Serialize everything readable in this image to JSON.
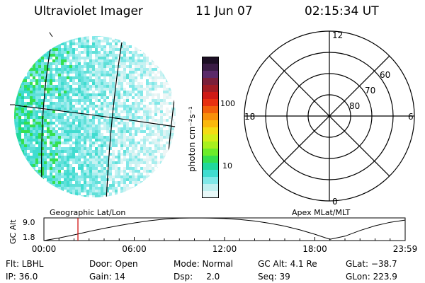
{
  "header": {
    "title": "Ultraviolet Imager",
    "date": "11 Jun 07",
    "time": "02:15:34 UT"
  },
  "imager": {
    "projection_label": "Geographic Lat/Lon"
  },
  "colorbar": {
    "unit_label": "photon cm⁻²s⁻¹",
    "ticks": [
      "100",
      "10"
    ],
    "colors": [
      "#1c0f24",
      "#3a1c45",
      "#5b2a6a",
      "#7a1f3a",
      "#a01c24",
      "#cf1a16",
      "#e83010",
      "#f2600a",
      "#f8900a",
      "#fab80c",
      "#f4dc14",
      "#d4ee18",
      "#a8f01e",
      "#6cec2a",
      "#34e050",
      "#20d89c",
      "#40dcd0",
      "#80e8e8",
      "#c0f0f0",
      "#e8f8f8"
    ]
  },
  "polar_plot": {
    "label": "Apex MLat/MLT",
    "mlt_labels": [
      "12",
      "18",
      "6",
      "0"
    ],
    "mlat_labels": [
      "60",
      "70",
      "80"
    ]
  },
  "chart_data": {
    "type": "line",
    "title": "",
    "ylabel": "GC Alt",
    "ytick_labels": [
      "9.0",
      "1.8"
    ],
    "ylim": [
      1.8,
      9.0
    ],
    "xtick_labels": [
      "00:00",
      "06:00",
      "12:00",
      "18:00",
      "23:59"
    ],
    "x_hours": [
      0,
      1,
      2,
      3,
      4,
      5,
      6,
      7,
      8,
      9,
      10,
      11,
      12,
      13,
      14,
      15,
      16,
      17,
      18,
      19,
      20,
      21,
      22,
      23,
      23.98
    ],
    "y": [
      1.8,
      2.6,
      3.6,
      4.7,
      5.7,
      6.6,
      7.4,
      8.1,
      8.6,
      8.9,
      9.0,
      8.95,
      8.8,
      8.5,
      8.0,
      7.3,
      6.4,
      5.2,
      3.8,
      2.2,
      3.2,
      5.0,
      6.5,
      7.6,
      8.3
    ],
    "current_time_hours": 2.26
  },
  "info": {
    "flt": "Flt: LBHL",
    "ip": "IP: 36.0",
    "door": "Door: Open",
    "gain": "Gain: 14",
    "mode": "Mode: Normal",
    "dsp": "Dsp:     2.0",
    "gcalt": "GC Alt: 4.1 Re",
    "seq": "Seq: 39",
    "glat": "GLat: −38.7",
    "glon": "GLon: 223.9"
  }
}
